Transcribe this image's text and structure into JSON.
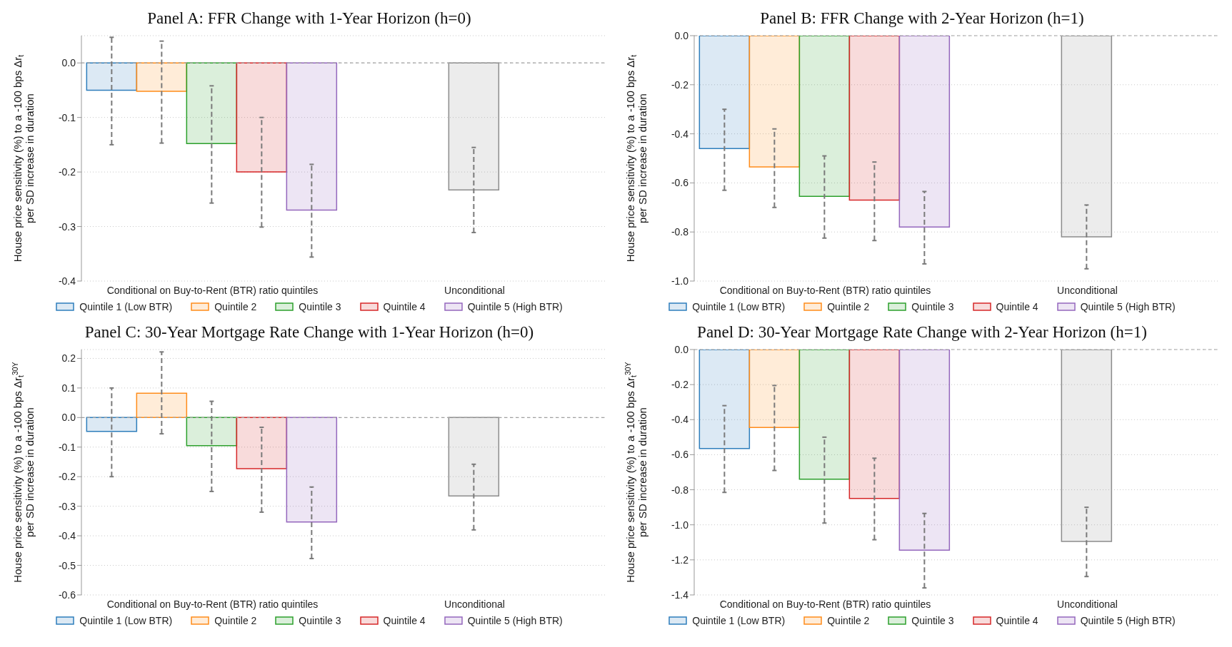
{
  "chart_data": [
    {
      "type": "bar",
      "title": "Panel A: FFR Change with 1-Year Horizon (h=0)",
      "ylabel": "House price sensitivity (%) to a -100 bps Δr$_{t}$\nper SD increase in duration",
      "categories": [
        "Conditional on Buy-to-Rent (BTR) ratio quintiles",
        "Unconditional"
      ],
      "ylim": [
        -0.4,
        0.05
      ],
      "yticks": [
        {
          "value": 0,
          "label": "0.0"
        },
        {
          "value": -0.1,
          "label": "-0.1"
        },
        {
          "value": -0.2,
          "label": "-0.2"
        },
        {
          "value": -0.3,
          "label": "-0.3"
        },
        {
          "value": -0.4,
          "label": "-0.4"
        }
      ],
      "grid": "y",
      "legend": "bottom",
      "ref_lines": [
        {
          "axis": "y",
          "value": 0,
          "color": "#a0a0a0",
          "line_style": "dashed"
        }
      ],
      "series": [
        {
          "name": "Quintile 1 (Low BTR)",
          "color": "#2e7ebc",
          "values": [
            -0.05,
            null
          ],
          "errors": [
            [
              -0.15,
              0.047
            ],
            null
          ]
        },
        {
          "name": "Quintile 2",
          "color": "#ff8c1a",
          "values": [
            -0.052,
            null
          ],
          "errors": [
            [
              -0.147,
              0.04
            ],
            null
          ]
        },
        {
          "name": "Quintile 3",
          "color": "#2ca02c",
          "values": [
            -0.148,
            null
          ],
          "errors": [
            [
              -0.257,
              -0.042
            ],
            null
          ]
        },
        {
          "name": "Quintile 4",
          "color": "#d62728",
          "values": [
            -0.2,
            null
          ],
          "errors": [
            [
              -0.301,
              -0.1
            ],
            null
          ]
        },
        {
          "name": "Quintile 5 (High BTR)",
          "color": "#9467bd",
          "values": [
            -0.27,
            null
          ],
          "errors": [
            [
              -0.356,
              -0.186
            ],
            null
          ]
        },
        {
          "color": "#8c8c8c",
          "values": [
            null,
            -0.233
          ],
          "errors": [
            null,
            [
              -0.311,
              -0.155
            ]
          ]
        }
      ]
    },
    {
      "type": "bar",
      "title": "Panel B: FFR Change with 2-Year Horizon (h=1)",
      "ylabel": "House price sensitivity (%) to a -100 bps Δr$_{t}$\nper SD increase in duration",
      "categories": [
        "Conditional on Buy-to-Rent (BTR) ratio quintiles",
        "Unconditional"
      ],
      "ylim": [
        -1.0,
        0
      ],
      "yticks": [
        {
          "value": 0,
          "label": "0.0"
        },
        {
          "value": -0.2,
          "label": "-0.2"
        },
        {
          "value": -0.4,
          "label": "-0.4"
        },
        {
          "value": -0.6,
          "label": "-0.6"
        },
        {
          "value": -0.8,
          "label": "-0.8"
        },
        {
          "value": -1,
          "label": "-1.0"
        }
      ],
      "grid": "y",
      "legend": "bottom",
      "ref_lines": [
        {
          "axis": "y",
          "value": 0,
          "color": "#a0a0a0",
          "line_style": "dashed"
        }
      ],
      "series": [
        {
          "name": "Quintile 1 (Low BTR)",
          "color": "#2e7ebc",
          "values": [
            -0.46,
            null
          ],
          "errors": [
            [
              -0.63,
              -0.3
            ],
            null
          ]
        },
        {
          "name": "Quintile 2",
          "color": "#ff8c1a",
          "values": [
            -0.535,
            null
          ],
          "errors": [
            [
              -0.7,
              -0.38
            ],
            null
          ]
        },
        {
          "name": "Quintile 3",
          "color": "#2ca02c",
          "values": [
            -0.655,
            null
          ],
          "errors": [
            [
              -0.825,
              -0.49
            ],
            null
          ]
        },
        {
          "name": "Quintile 4",
          "color": "#d62728",
          "values": [
            -0.67,
            null
          ],
          "errors": [
            [
              -0.835,
              -0.515
            ],
            null
          ]
        },
        {
          "name": "Quintile 5 (High BTR)",
          "color": "#9467bd",
          "values": [
            -0.78,
            null
          ],
          "errors": [
            [
              -0.93,
              -0.635
            ],
            null
          ]
        },
        {
          "color": "#8c8c8c",
          "values": [
            null,
            -0.82
          ],
          "errors": [
            null,
            [
              -0.95,
              -0.69
            ]
          ]
        }
      ]
    },
    {
      "type": "bar",
      "title": "Panel C: 30-Year Mortgage Rate Change with 1-Year Horizon (h=0)",
      "ylabel": "House price sensitivity (%) to a -100 bps Δr$_{t}$$^{30Y}$\nper SD increase in duration",
      "categories": [
        "Conditional on Buy-to-Rent (BTR) ratio quintiles",
        "Unconditional"
      ],
      "ylim": [
        -0.6,
        0.23
      ],
      "yticks": [
        {
          "value": 0.2,
          "label": "0.2"
        },
        {
          "value": 0.1,
          "label": "0.1"
        },
        {
          "value": 0,
          "label": "0.0"
        },
        {
          "value": -0.1,
          "label": "-0.1"
        },
        {
          "value": -0.2,
          "label": "-0.2"
        },
        {
          "value": -0.3,
          "label": "-0.3"
        },
        {
          "value": -0.4,
          "label": "-0.4"
        },
        {
          "value": -0.5,
          "label": "-0.5"
        },
        {
          "value": -0.6,
          "label": "-0.6"
        }
      ],
      "grid": "y",
      "legend": "bottom",
      "ref_lines": [
        {
          "axis": "y",
          "value": 0,
          "color": "#a0a0a0",
          "line_style": "dashed"
        }
      ],
      "series": [
        {
          "name": "Quintile 1 (Low BTR)",
          "color": "#2e7ebc",
          "values": [
            -0.047,
            null
          ],
          "errors": [
            [
              -0.2,
              0.1
            ],
            null
          ]
        },
        {
          "name": "Quintile 2",
          "color": "#ff8c1a",
          "values": [
            0.082,
            null
          ],
          "errors": [
            [
              -0.055,
              0.222
            ],
            null
          ]
        },
        {
          "name": "Quintile 3",
          "color": "#2ca02c",
          "values": [
            -0.095,
            null
          ],
          "errors": [
            [
              -0.25,
              0.055
            ],
            null
          ]
        },
        {
          "name": "Quintile 4",
          "color": "#d62728",
          "values": [
            -0.173,
            null
          ],
          "errors": [
            [
              -0.32,
              -0.033
            ],
            null
          ]
        },
        {
          "name": "Quintile 5 (High BTR)",
          "color": "#9467bd",
          "values": [
            -0.353,
            null
          ],
          "errors": [
            [
              -0.477,
              -0.235
            ],
            null
          ]
        },
        {
          "color": "#8c8c8c",
          "values": [
            null,
            -0.265
          ],
          "errors": [
            null,
            [
              -0.38,
              -0.158
            ]
          ]
        }
      ]
    },
    {
      "type": "bar",
      "title": "Panel D: 30-Year Mortgage Rate Change with 2-Year Horizon (h=1)",
      "ylabel": "House price sensitivity (%) to a -100 bps Δr$_{t}$$^{30Y}$\nper SD increase in duration",
      "categories": [
        "Conditional on Buy-to-Rent (BTR) ratio quintiles",
        "Unconditional"
      ],
      "ylim": [
        -1.4,
        0
      ],
      "yticks": [
        {
          "value": 0,
          "label": "0.0"
        },
        {
          "value": -0.2,
          "label": "-0.2"
        },
        {
          "value": -0.4,
          "label": "-0.4"
        },
        {
          "value": -0.6,
          "label": "-0.6"
        },
        {
          "value": -0.8,
          "label": "-0.8"
        },
        {
          "value": -1,
          "label": "-1.0"
        },
        {
          "value": -1.2,
          "label": "-1.2"
        },
        {
          "value": -1.4,
          "label": "-1.4"
        }
      ],
      "grid": "y",
      "legend": "bottom",
      "ref_lines": [
        {
          "axis": "y",
          "value": 0,
          "color": "#a0a0a0",
          "line_style": "dashed"
        }
      ],
      "series": [
        {
          "name": "Quintile 1 (Low BTR)",
          "color": "#2e7ebc",
          "values": [
            -0.565,
            null
          ],
          "errors": [
            [
              -0.815,
              -0.32
            ],
            null
          ]
        },
        {
          "name": "Quintile 2",
          "color": "#ff8c1a",
          "values": [
            -0.445,
            null
          ],
          "errors": [
            [
              -0.69,
              -0.205
            ],
            null
          ]
        },
        {
          "name": "Quintile 3",
          "color": "#2ca02c",
          "values": [
            -0.74,
            null
          ],
          "errors": [
            [
              -0.99,
              -0.5
            ],
            null
          ]
        },
        {
          "name": "Quintile 4",
          "color": "#d62728",
          "values": [
            -0.85,
            null
          ],
          "errors": [
            [
              -1.085,
              -0.62
            ],
            null
          ]
        },
        {
          "name": "Quintile 5 (High BTR)",
          "color": "#9467bd",
          "values": [
            -1.145,
            null
          ],
          "errors": [
            [
              -1.36,
              -0.935
            ],
            null
          ]
        },
        {
          "color": "#8c8c8c",
          "values": [
            null,
            -1.095
          ],
          "errors": [
            null,
            [
              -1.295,
              -0.9
            ]
          ]
        }
      ]
    }
  ]
}
